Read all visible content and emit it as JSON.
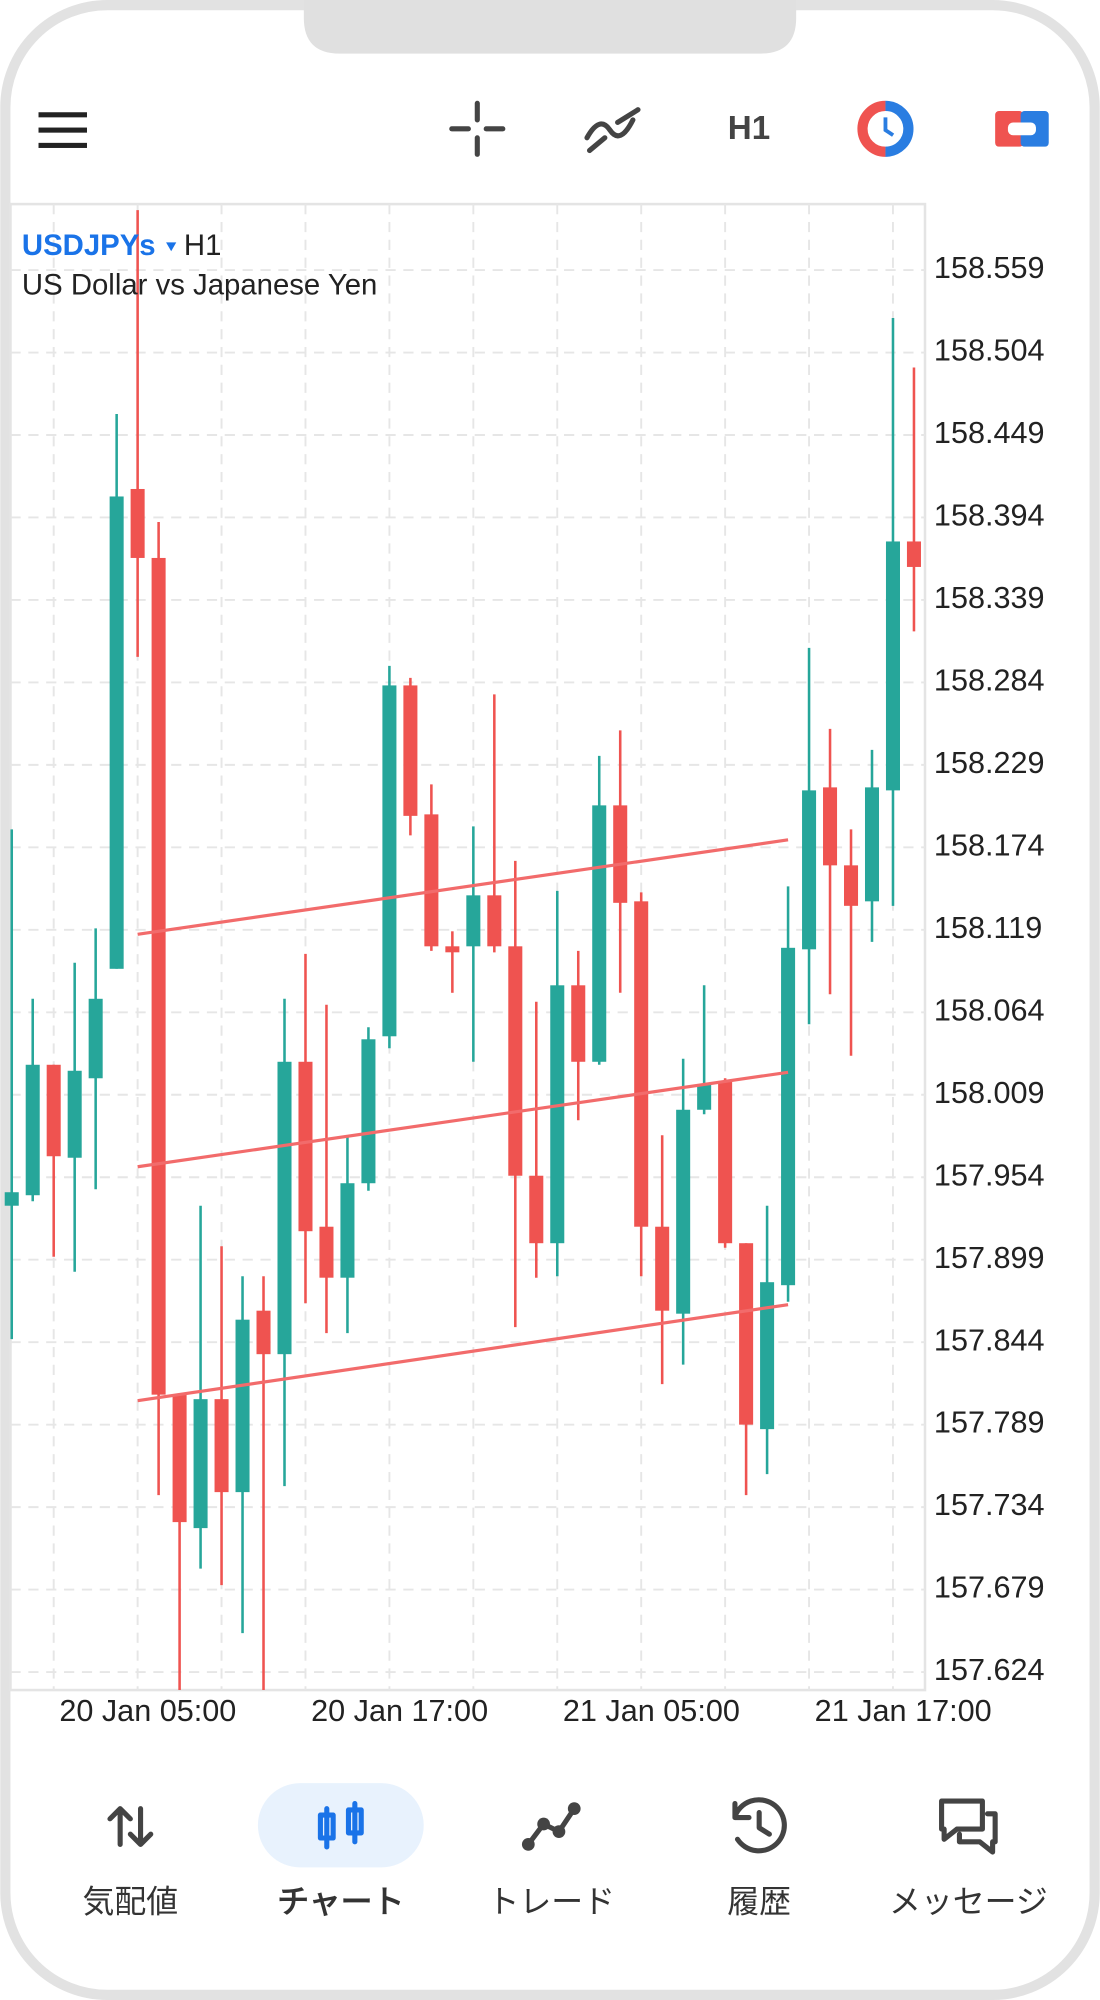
{
  "toolbar": {
    "timeframe": "H1"
  },
  "chart_data": {
    "type": "candlestick",
    "symbol": "USDJPYs",
    "timeframe": "H1",
    "title": "US Dollar vs Japanese Yen",
    "categories": [
      null,
      null,
      null,
      null,
      null,
      null,
      "20 Jan 05:00",
      null,
      null,
      null,
      null,
      null,
      null,
      null,
      null,
      null,
      null,
      null,
      "20 Jan 17:00",
      null,
      null,
      null,
      null,
      null,
      null,
      null,
      null,
      null,
      null,
      null,
      "21 Jan 05:00",
      null,
      null,
      null,
      null,
      null,
      null,
      null,
      null,
      null,
      null,
      null,
      "21 Jan 17:00",
      null
    ],
    "open": [
      157.935,
      157.942,
      158.029,
      157.967,
      158.02,
      158.093,
      158.413,
      158.367,
      157.809,
      157.72,
      157.806,
      157.744,
      157.865,
      157.836,
      158.031,
      157.921,
      157.887,
      157.95,
      158.048,
      158.282,
      158.196,
      158.108,
      158.108,
      158.142,
      158.108,
      157.955,
      157.91,
      158.082,
      158.031,
      158.202,
      158.138,
      157.921,
      157.863,
      157.999,
      158.018,
      157.91,
      157.786,
      157.882,
      158.106,
      158.214,
      158.162,
      158.138,
      158.212,
      158.378
    ],
    "high": [
      158.186,
      158.073,
      158.029,
      158.097,
      158.12,
      158.463,
      158.599,
      158.391,
      157.809,
      157.935,
      157.908,
      157.888,
      157.888,
      158.073,
      158.103,
      158.069,
      157.982,
      158.054,
      158.295,
      158.287,
      158.216,
      158.118,
      158.188,
      158.276,
      158.165,
      158.071,
      158.145,
      158.105,
      158.235,
      158.252,
      158.144,
      157.982,
      158.033,
      158.082,
      158.02,
      157.91,
      157.935,
      158.148,
      158.307,
      158.253,
      158.186,
      158.239,
      158.527,
      158.494
    ],
    "low": [
      157.846,
      157.938,
      157.901,
      157.891,
      157.946,
      158.093,
      158.301,
      157.742,
      157.612,
      157.693,
      157.682,
      157.65,
      157.612,
      157.748,
      157.87,
      157.85,
      157.85,
      157.945,
      158.04,
      158.182,
      158.105,
      158.077,
      158.031,
      158.104,
      157.854,
      157.887,
      157.888,
      157.992,
      158.029,
      158.077,
      157.888,
      157.816,
      157.829,
      157.996,
      157.907,
      157.742,
      157.756,
      157.871,
      158.056,
      158.076,
      158.035,
      158.111,
      158.135,
      158.318
    ],
    "close": [
      157.944,
      158.029,
      157.968,
      158.025,
      158.073,
      158.408,
      158.367,
      157.809,
      157.724,
      157.806,
      157.744,
      157.859,
      157.836,
      158.031,
      157.918,
      157.887,
      157.95,
      158.046,
      158.282,
      158.195,
      158.108,
      158.104,
      158.142,
      158.108,
      157.955,
      157.91,
      158.082,
      158.031,
      158.202,
      158.137,
      157.921,
      157.865,
      157.999,
      158.016,
      157.91,
      157.789,
      157.884,
      158.107,
      158.212,
      158.162,
      158.135,
      158.214,
      158.378,
      158.361
    ],
    "up_color": "#26a69a",
    "down_color": "#ef5350",
    "ylim": [
      157.612,
      158.603
    ],
    "yticks": [
      158.559,
      158.504,
      158.449,
      158.394,
      158.339,
      158.284,
      158.229,
      158.174,
      158.119,
      158.064,
      158.009,
      157.954,
      157.899,
      157.844,
      157.789,
      157.734,
      157.679,
      157.624
    ],
    "grid": true,
    "trendlines": [
      {
        "color": "#f26b6b",
        "x": [
          6,
          37
        ],
        "y": [
          158.116,
          158.179
        ]
      },
      {
        "color": "#f26b6b",
        "x": [
          6,
          37
        ],
        "y": [
          157.961,
          158.024
        ]
      },
      {
        "color": "#f26b6b",
        "x": [
          6,
          37
        ],
        "y": [
          157.805,
          157.869
        ]
      }
    ]
  },
  "nav": {
    "items": [
      "気配値",
      "チャート",
      "トレード",
      "履歴",
      "メッセージ"
    ],
    "active": 1,
    "active_color": "#1a73e8"
  }
}
